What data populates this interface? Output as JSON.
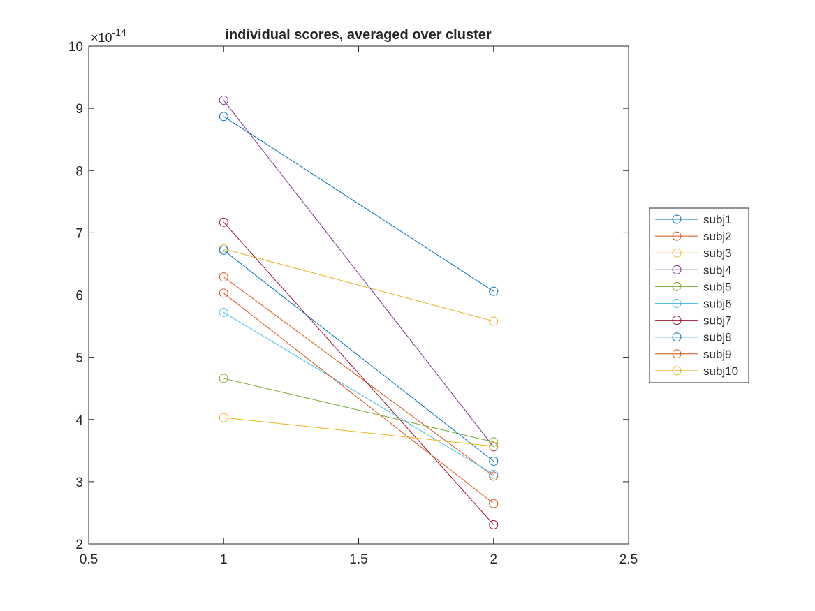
{
  "chart_data": {
    "type": "line",
    "title": "individual scores, averaged over cluster",
    "xlabel": "",
    "ylabel": "",
    "y_exponent_label": "×10",
    "y_exponent_power": "-14",
    "xlim": [
      0.5,
      2.5
    ],
    "ylim": [
      2,
      10
    ],
    "y_scale_factor": 1e-14,
    "xticks": [
      0.5,
      1,
      1.5,
      2,
      2.5
    ],
    "xtick_labels": [
      "0.5",
      "1",
      "1.5",
      "2",
      "2.5"
    ],
    "yticks": [
      2,
      3,
      4,
      5,
      6,
      7,
      8,
      9,
      10
    ],
    "ytick_labels": [
      "2",
      "3",
      "4",
      "5",
      "6",
      "7",
      "8",
      "9",
      "10"
    ],
    "grid": false,
    "legend_position": "right, outside plot area",
    "x": [
      1,
      2
    ],
    "series": [
      {
        "name": "subj1",
        "values": [
          8.87,
          6.06
        ],
        "color": "#0072BD"
      },
      {
        "name": "subj2",
        "values": [
          6.29,
          3.09
        ],
        "color": "#D95319"
      },
      {
        "name": "subj3",
        "values": [
          6.74,
          5.58
        ],
        "color": "#EDB120"
      },
      {
        "name": "subj4",
        "values": [
          9.13,
          3.56
        ],
        "color": "#7E2F8E"
      },
      {
        "name": "subj5",
        "values": [
          4.66,
          3.64
        ],
        "color": "#77AC30"
      },
      {
        "name": "subj6",
        "values": [
          5.72,
          3.12
        ],
        "color": "#4DBEEE"
      },
      {
        "name": "subj7",
        "values": [
          7.17,
          2.31
        ],
        "color": "#A2142F"
      },
      {
        "name": "subj8",
        "values": [
          6.72,
          3.33
        ],
        "color": "#0072BD"
      },
      {
        "name": "subj9",
        "values": [
          6.03,
          2.65
        ],
        "color": "#D95319"
      },
      {
        "name": "subj10",
        "values": [
          4.03,
          3.57
        ],
        "color": "#EDB120"
      }
    ]
  }
}
